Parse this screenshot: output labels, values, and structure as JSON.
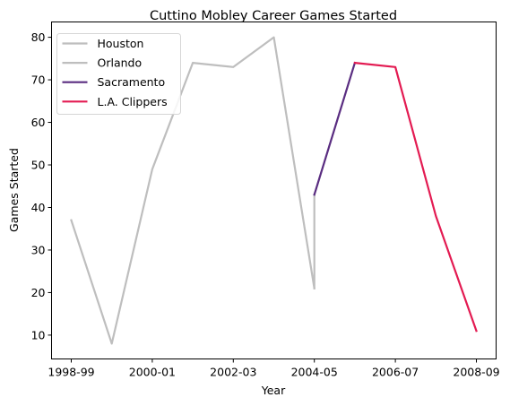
{
  "chart_data": {
    "type": "line",
    "title": "Cuttino Mobley Career Games Started",
    "xlabel": "Year",
    "ylabel": "Games Started",
    "x_tick_labels": [
      "1998-99",
      "2000-01",
      "2002-03",
      "2004-05",
      "2006-07",
      "2008-09"
    ],
    "y_ticks": [
      10,
      20,
      30,
      40,
      50,
      60,
      70,
      80
    ],
    "ylim": [
      4.4,
      83.6
    ],
    "xlim": [
      "1998-99",
      "2008-09"
    ],
    "grid": false,
    "legend_position": "top-left",
    "series": [
      {
        "name": "Houston",
        "color": "#bebebe",
        "x": [
          "1998-99",
          "1999-00",
          "2000-01",
          "2001-02",
          "2002-03",
          "2003-04",
          "2004-05"
        ],
        "values": [
          37,
          8,
          49,
          74,
          73,
          80,
          21
        ]
      },
      {
        "name": "Orlando",
        "color": "#bebebe",
        "x": [
          "2004-05",
          "2004-05"
        ],
        "values": [
          21,
          43
        ]
      },
      {
        "name": "Sacramento",
        "color": "#5a2d81",
        "x": [
          "2004-05",
          "2005-06"
        ],
        "values": [
          43,
          74
        ]
      },
      {
        "name": "L.A. Clippers",
        "color": "#e31b52",
        "x": [
          "2005-06",
          "2006-07",
          "2007-08",
          "2008-09"
        ],
        "values": [
          74,
          73,
          38,
          11
        ]
      }
    ]
  }
}
